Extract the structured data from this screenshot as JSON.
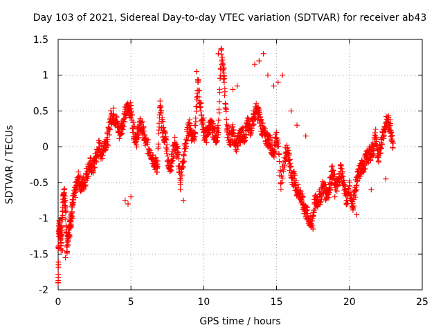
{
  "chart_data": {
    "type": "scatter",
    "title": "Day 103 of 2021, Sidereal Day-to-day VTEC variation (SDTVAR) for receiver ab43",
    "xlabel": "GPS time / hours",
    "ylabel": "SDTVAR / TECUs",
    "xlim": [
      0,
      25
    ],
    "ylim": [
      -2,
      1.5
    ],
    "xticks": [
      0,
      5,
      10,
      15,
      20,
      25
    ],
    "yticks": [
      -2,
      -1.5,
      -1,
      -0.5,
      0,
      0.5,
      1,
      1.5
    ],
    "xtick_labels": [
      "0",
      "5",
      "10",
      "15",
      "20",
      "25"
    ],
    "ytick_labels": [
      "-2",
      "-1.5",
      "-1",
      "-0.5",
      "0",
      "0.5",
      "1",
      "1.5"
    ],
    "grid": true,
    "marker": "+",
    "color": "#ff0000",
    "series": [
      {
        "name": "SDTVAR",
        "x": [
          0.0,
          0.05,
          0.1,
          0.15,
          0.2,
          0.3,
          0.4,
          0.5,
          0.6,
          0.7,
          0.8,
          0.9,
          1.0,
          1.2,
          1.4,
          1.6,
          1.8,
          2.0,
          2.2,
          2.4,
          2.6,
          2.8,
          3.0,
          3.2,
          3.4,
          3.6,
          3.8,
          4.0,
          4.2,
          4.4,
          4.6,
          4.8,
          5.0,
          5.2,
          5.4,
          5.6,
          5.8,
          6.0,
          6.3,
          6.6,
          6.8,
          7.0,
          7.2,
          7.4,
          7.6,
          7.8,
          8.0,
          8.2,
          8.4,
          8.6,
          8.8,
          9.0,
          9.2,
          9.4,
          9.6,
          9.8,
          10.0,
          10.2,
          10.4,
          10.6,
          10.8,
          11.0,
          11.2,
          11.4,
          11.6,
          11.8,
          12.0,
          12.2,
          12.4,
          12.6,
          12.8,
          13.0,
          13.2,
          13.4,
          13.6,
          13.8,
          14.0,
          14.2,
          14.4,
          14.6,
          14.8,
          15.0,
          15.3,
          15.6,
          15.8,
          16.0,
          16.2,
          16.4,
          16.6,
          16.8,
          17.0,
          17.2,
          17.4,
          17.6,
          17.8,
          18.0,
          18.2,
          18.4,
          18.6,
          18.8,
          19.0,
          19.2,
          19.4,
          19.6,
          19.8,
          20.0,
          20.2,
          20.4,
          20.6,
          20.8,
          21.0,
          21.2,
          21.4,
          21.6,
          21.8,
          22.0,
          22.2,
          22.4,
          22.6,
          22.8,
          23.0,
          0.0,
          0.3,
          0.5,
          0.8,
          1.0,
          4.6,
          4.8,
          5.0,
          7.2,
          8.4,
          8.6,
          9.5,
          9.7,
          10.0,
          11.0,
          11.2,
          11.4,
          12.0,
          12.3,
          13.5,
          13.8,
          14.1,
          14.4,
          14.8,
          15.1,
          15.4,
          16.0,
          16.4,
          17.0,
          17.5,
          19.0,
          20.5,
          21.5,
          22.5
        ],
        "y": [
          -1.9,
          -1.1,
          -1.15,
          -1.2,
          -1.35,
          -0.9,
          -0.6,
          -0.85,
          -1.4,
          -1.2,
          -1.1,
          -1.0,
          -0.8,
          -0.6,
          -0.45,
          -0.55,
          -0.5,
          -0.35,
          -0.25,
          -0.3,
          -0.15,
          0.0,
          -0.1,
          0.05,
          0.1,
          0.4,
          0.45,
          0.35,
          0.2,
          0.3,
          0.45,
          0.55,
          0.5,
          0.2,
          0.1,
          0.3,
          0.25,
          0.05,
          -0.05,
          -0.2,
          -0.3,
          0.55,
          0.2,
          0.1,
          -0.3,
          -0.2,
          0.05,
          -0.1,
          -0.45,
          -0.2,
          0.1,
          0.3,
          0.15,
          0.2,
          0.9,
          0.5,
          0.2,
          0.15,
          0.3,
          0.25,
          0.15,
          0.2,
          1.35,
          0.9,
          0.25,
          0.1,
          0.2,
          0.0,
          0.1,
          0.2,
          0.15,
          0.3,
          0.25,
          0.4,
          0.5,
          0.45,
          0.25,
          0.15,
          0.1,
          0.05,
          -0.1,
          0.2,
          -0.5,
          -0.1,
          -0.05,
          -0.4,
          -0.45,
          -0.6,
          -0.65,
          -0.8,
          -0.9,
          -1.0,
          -1.1,
          -0.8,
          -0.75,
          -0.7,
          -0.55,
          -0.65,
          -0.6,
          -0.35,
          -0.5,
          -0.55,
          -0.3,
          -0.5,
          -0.75,
          -0.55,
          -0.85,
          -0.6,
          -0.4,
          -0.3,
          -0.25,
          -0.15,
          -0.1,
          -0.05,
          0.15,
          -0.2,
          0.1,
          0.25,
          0.35,
          0.3,
          0.05,
          -1.4,
          -1.45,
          -1.55,
          -1.25,
          -1.0,
          -0.75,
          -0.8,
          -0.7,
          0.35,
          -0.6,
          -0.75,
          1.05,
          0.6,
          0.4,
          1.3,
          1.35,
          1.1,
          0.8,
          0.85,
          1.15,
          1.2,
          1.3,
          1.0,
          0.85,
          0.9,
          1.0,
          0.5,
          0.3,
          0.15,
          -1.15,
          -0.7,
          -0.95,
          -0.6,
          -0.45
        ]
      }
    ]
  }
}
